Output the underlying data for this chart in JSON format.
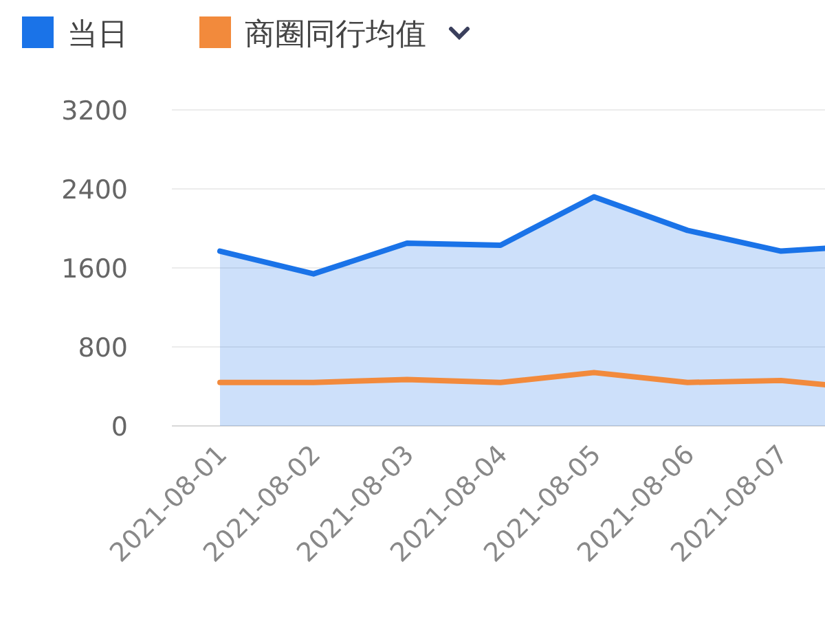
{
  "chart_data": {
    "type": "line",
    "categories": [
      "2021-08-01",
      "2021-08-02",
      "2021-08-03",
      "2021-08-04",
      "2021-08-05",
      "2021-08-06",
      "2021-08-07",
      null
    ],
    "series": [
      {
        "name": "当日",
        "type": "area",
        "color": "#1a73e8",
        "values": [
          1770,
          1540,
          1850,
          1830,
          2320,
          1980,
          1770,
          1830
        ]
      },
      {
        "name": "商圈同行均值",
        "type": "line",
        "color": "#f28a3c",
        "values": [
          440,
          440,
          470,
          440,
          540,
          440,
          460,
          370
        ]
      }
    ],
    "ylim": [
      0,
      3200
    ],
    "yticks": [
      0,
      800,
      1600,
      2400,
      3200
    ],
    "grid": "y",
    "legend": "top left",
    "marker": "none",
    "line_style": "solid"
  }
}
